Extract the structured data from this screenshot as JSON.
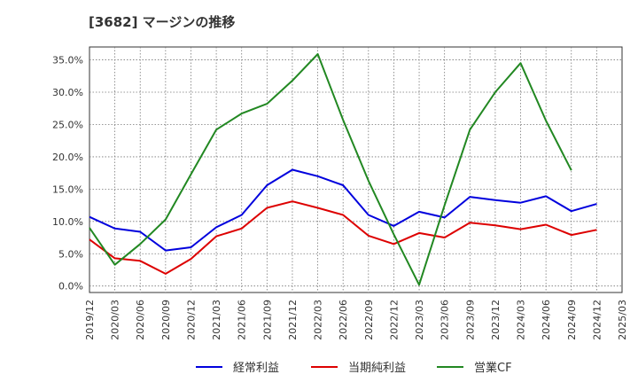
{
  "chart_data": {
    "type": "line",
    "title": "[3682]  マージンの推移",
    "x": [
      "2019/12",
      "2020/03",
      "2020/06",
      "2020/09",
      "2020/12",
      "2021/03",
      "2021/06",
      "2021/09",
      "2021/12",
      "2022/03",
      "2022/06",
      "2022/09",
      "2022/12",
      "2023/03",
      "2023/06",
      "2023/09",
      "2023/12",
      "2024/03",
      "2024/06",
      "2024/09",
      "2024/12",
      "2025/03"
    ],
    "y_ticks": [
      "0.0%",
      "5.0%",
      "10.0%",
      "15.0%",
      "20.0%",
      "25.0%",
      "30.0%",
      "35.0%"
    ],
    "ylim": [
      -1.0,
      37.0
    ],
    "grid": true,
    "legend_position": "bottom",
    "series": [
      {
        "name": "経常利益",
        "color": "#0000dd",
        "values": [
          10.7,
          8.9,
          8.4,
          5.5,
          6.0,
          9.1,
          11.0,
          15.6,
          18.0,
          17.0,
          15.6,
          11.0,
          9.3,
          11.5,
          10.6,
          13.8,
          13.3,
          12.9,
          13.9,
          11.6,
          12.7,
          null
        ]
      },
      {
        "name": "当期純利益",
        "color": "#dd0000",
        "values": [
          7.2,
          4.3,
          3.9,
          1.9,
          4.2,
          7.7,
          8.9,
          12.1,
          13.1,
          12.1,
          11.0,
          7.8,
          6.5,
          8.2,
          7.5,
          9.8,
          9.4,
          8.8,
          9.5,
          7.9,
          8.7,
          null
        ]
      },
      {
        "name": "営業CF",
        "color": "#228822",
        "values": [
          9.0,
          3.3,
          6.5,
          10.3,
          17.3,
          24.2,
          26.7,
          28.2,
          31.8,
          35.9,
          25.7,
          16.3,
          8.0,
          0.2,
          12.5,
          24.2,
          30.0,
          34.5,
          25.6,
          17.9,
          null,
          null
        ]
      }
    ]
  }
}
